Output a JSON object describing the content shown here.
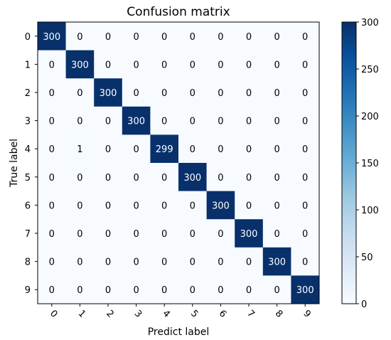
{
  "chart_data": {
    "type": "heatmap",
    "title": "Confusion matrix",
    "xlabel": "Predict label",
    "ylabel": "True label",
    "x_tick_labels": [
      "0",
      "1",
      "2",
      "3",
      "4",
      "5",
      "6",
      "7",
      "8",
      "9"
    ],
    "y_tick_labels": [
      "0",
      "1",
      "2",
      "3",
      "4",
      "5",
      "6",
      "7",
      "8",
      "9"
    ],
    "matrix": [
      [
        300,
        0,
        0,
        0,
        0,
        0,
        0,
        0,
        0,
        0
      ],
      [
        0,
        300,
        0,
        0,
        0,
        0,
        0,
        0,
        0,
        0
      ],
      [
        0,
        0,
        300,
        0,
        0,
        0,
        0,
        0,
        0,
        0
      ],
      [
        0,
        0,
        0,
        300,
        0,
        0,
        0,
        0,
        0,
        0
      ],
      [
        0,
        1,
        0,
        0,
        299,
        0,
        0,
        0,
        0,
        0
      ],
      [
        0,
        0,
        0,
        0,
        0,
        300,
        0,
        0,
        0,
        0
      ],
      [
        0,
        0,
        0,
        0,
        0,
        0,
        300,
        0,
        0,
        0
      ],
      [
        0,
        0,
        0,
        0,
        0,
        0,
        0,
        300,
        0,
        0
      ],
      [
        0,
        0,
        0,
        0,
        0,
        0,
        0,
        0,
        300,
        0
      ],
      [
        0,
        0,
        0,
        0,
        0,
        0,
        0,
        0,
        0,
        300
      ]
    ],
    "colorbar": {
      "min": 0,
      "max": 300,
      "ticks": [
        0,
        50,
        100,
        150,
        200,
        250,
        300
      ],
      "colormap": "Blues",
      "color_low": "#f7fbff",
      "color_high": "#08306b"
    },
    "cell_text_color_dark": "#000000",
    "cell_text_color_light": "#ffffff"
  }
}
